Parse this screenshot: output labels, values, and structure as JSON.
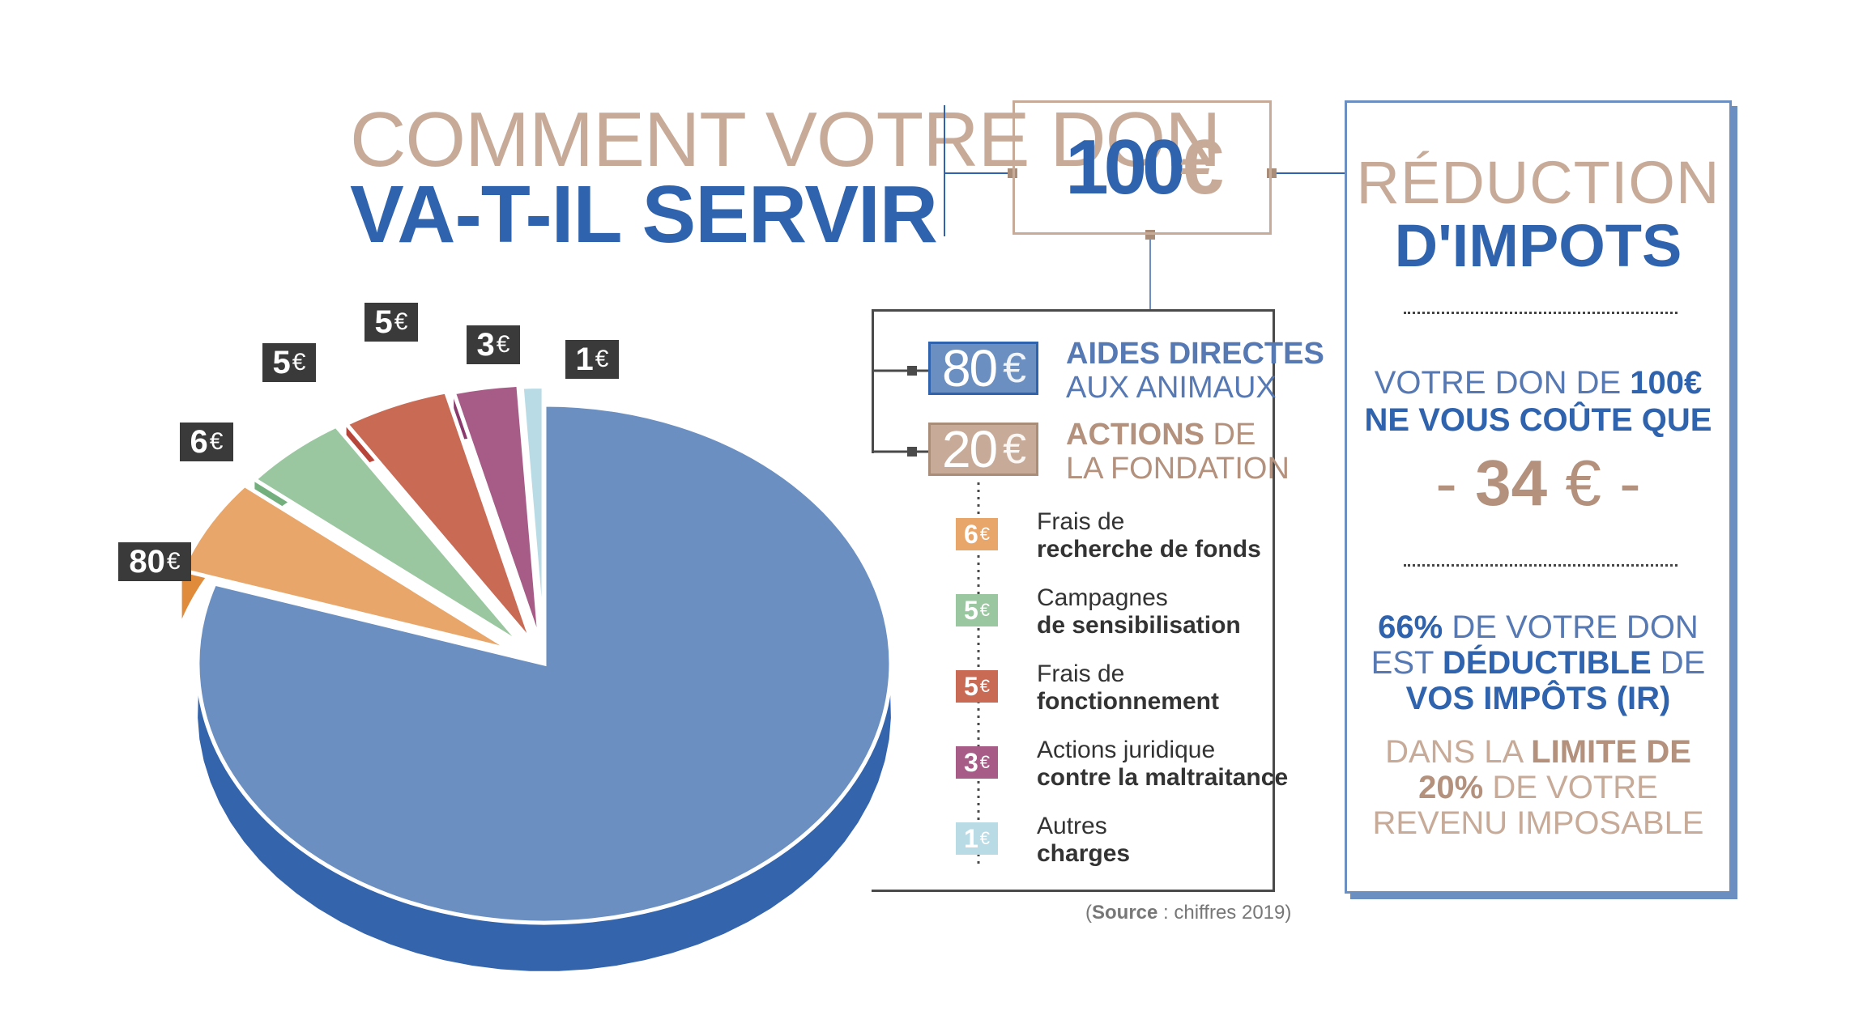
{
  "title": {
    "line1": "COMMENT VOTRE DON",
    "line2": "VA-T-IL SERVIR"
  },
  "total": {
    "amount": "100",
    "currency": "€"
  },
  "main_categories": [
    {
      "value": "80",
      "currency": "€",
      "label_bold": "AIDES DIRECTES",
      "label_rest": "AUX ANIMAUX",
      "color": "#6a8fc0",
      "text_color": "#5679b4"
    },
    {
      "value": "20",
      "currency": "€",
      "label_bold": "ACTIONS",
      "label_mid": " DE",
      "label_rest": "LA FONDATION",
      "color": "#c7ab98",
      "text_color": "#b3917d"
    }
  ],
  "items": [
    {
      "value": "6",
      "currency": "€",
      "line1": "Frais de",
      "line2": "recherche de fonds",
      "color": "#e8a66a"
    },
    {
      "value": "5",
      "currency": "€",
      "line1": "Campagnes",
      "line2": "de sensibilisation",
      "color": "#9ac7a0"
    },
    {
      "value": "5",
      "currency": "€",
      "line1": "Frais de",
      "line2": "fonctionnement",
      "color": "#c96a55"
    },
    {
      "value": "3",
      "currency": "€",
      "line1": "Actions juridique",
      "line2": "contre la maltraitance",
      "color": "#a65c87"
    },
    {
      "value": "1",
      "currency": "€",
      "line1": "Autres",
      "line2": "charges",
      "color": "#b8dbe6"
    }
  ],
  "source": {
    "bold": "Source",
    "rest": " : chiffres 2019)",
    "open": "("
  },
  "side_panel": {
    "title1": "RÉDUCTION",
    "title2": "D'IMPOTS",
    "cost_line1_pre": "VOTRE DON DE ",
    "cost_line1_bold": "100€",
    "cost_line2": "NE VOUS COÛTE QUE",
    "cost_value": "34",
    "cost_currency": "€",
    "dash": "-",
    "ded1_bold": "66%",
    "ded1_rest": " DE VOTRE DON",
    "ded2_pre": "EST ",
    "ded2_bold": "DÉDUCTIBLE",
    "ded2_post": " DE",
    "ded3": "VOS IMPÔTS (IR)",
    "lim1_pre": "DANS LA ",
    "lim1_bold": "LIMITE DE",
    "lim2_bold": "20%",
    "lim2_rest": " DE VOTRE",
    "lim3": "REVENU IMPOSABLE"
  },
  "colors": {
    "blue": "#2f63ad",
    "light_blue": "#6a8fc0",
    "tan": "#c7ab98",
    "dark": "#3a3a3a"
  },
  "chart_data": {
    "type": "pie",
    "title": "COMMENT VOTRE DON VA-T-IL SERVIR",
    "total": 100,
    "unit": "€",
    "categories": [
      "Aides directes aux animaux",
      "Frais de recherche de fonds",
      "Campagnes de sensibilisation",
      "Frais de fonctionnement",
      "Actions juridique contre la maltraitance",
      "Autres charges"
    ],
    "values": [
      80,
      6,
      5,
      5,
      3,
      1
    ],
    "data_labels": [
      "80",
      "6",
      "5",
      "5",
      "3",
      "1"
    ],
    "colors": [
      "#6a8fc0",
      "#e8a66a",
      "#9ac7a0",
      "#c96a55",
      "#a65c87",
      "#b8dbe6"
    ],
    "side_colors": [
      "#3464ac",
      "#e08a3c",
      "#74b07e",
      "#b8453a",
      "#8a3a6c",
      "#a0ccd8"
    ]
  }
}
